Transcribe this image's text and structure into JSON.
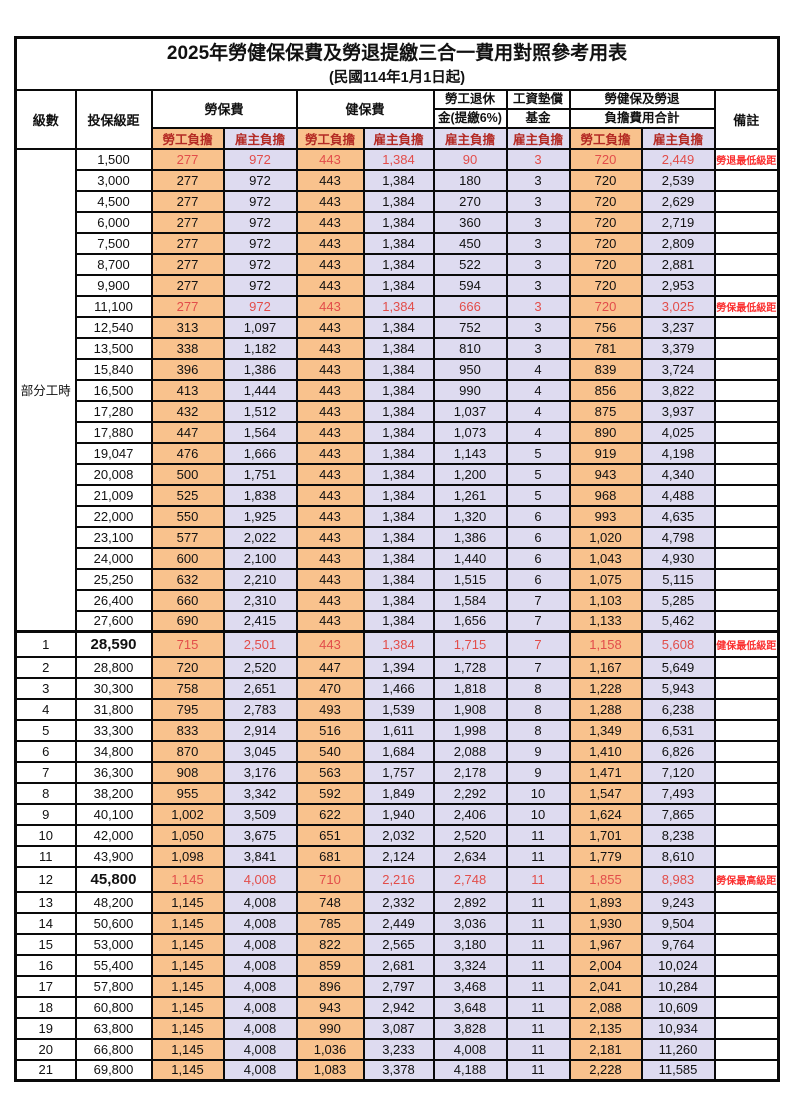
{
  "title": "2025年勞健保保費及勞退提繳三合一費用對照參考用表",
  "subtitle": "(民國114年1月1日起)",
  "colors": {
    "worker_fill": "#f9c28d",
    "employer_fill": "#dedbf0",
    "subheader_text": "#b42a24",
    "highlight_number_text": "#e24d4a",
    "remark_text": "#fb2f2f",
    "border": "#0a0a0a"
  },
  "header": {
    "level": "級數",
    "bracket": "投保級距",
    "labor_insurance": "勞保費",
    "health_insurance": "健保費",
    "pension_line1": "勞工退休",
    "pension_line2": "金(提繳6%)",
    "wage_fund_line1": "工資墊償",
    "wage_fund_line2": "基金",
    "total_line1": "勞健保及勞退",
    "total_line2": "負擔費用合計",
    "remark": "備註",
    "worker_share": "勞工負擔",
    "employer_share": "雇主負擔"
  },
  "part_time_label": "部分工時",
  "part_time_rowspan": 23,
  "rows": [
    {
      "level": null,
      "bracket": "1,500",
      "values": [
        "277",
        "972",
        "443",
        "1,384",
        "90",
        "3",
        "720",
        "2,449"
      ],
      "remark": "勞退最低級距",
      "red": true,
      "tall": false,
      "thick_top": false
    },
    {
      "level": null,
      "bracket": "3,000",
      "values": [
        "277",
        "972",
        "443",
        "1,384",
        "180",
        "3",
        "720",
        "2,539"
      ],
      "remark": "",
      "red": false,
      "tall": false,
      "thick_top": false
    },
    {
      "level": null,
      "bracket": "4,500",
      "values": [
        "277",
        "972",
        "443",
        "1,384",
        "270",
        "3",
        "720",
        "2,629"
      ],
      "remark": "",
      "red": false,
      "tall": false,
      "thick_top": false
    },
    {
      "level": null,
      "bracket": "6,000",
      "values": [
        "277",
        "972",
        "443",
        "1,384",
        "360",
        "3",
        "720",
        "2,719"
      ],
      "remark": "",
      "red": false,
      "tall": false,
      "thick_top": false
    },
    {
      "level": null,
      "bracket": "7,500",
      "values": [
        "277",
        "972",
        "443",
        "1,384",
        "450",
        "3",
        "720",
        "2,809"
      ],
      "remark": "",
      "red": false,
      "tall": false,
      "thick_top": false
    },
    {
      "level": null,
      "bracket": "8,700",
      "values": [
        "277",
        "972",
        "443",
        "1,384",
        "522",
        "3",
        "720",
        "2,881"
      ],
      "remark": "",
      "red": false,
      "tall": false,
      "thick_top": false
    },
    {
      "level": null,
      "bracket": "9,900",
      "values": [
        "277",
        "972",
        "443",
        "1,384",
        "594",
        "3",
        "720",
        "2,953"
      ],
      "remark": "",
      "red": false,
      "tall": false,
      "thick_top": false
    },
    {
      "level": null,
      "bracket": "11,100",
      "values": [
        "277",
        "972",
        "443",
        "1,384",
        "666",
        "3",
        "720",
        "3,025"
      ],
      "remark": "勞保最低級距",
      "red": true,
      "tall": false,
      "thick_top": false
    },
    {
      "level": null,
      "bracket": "12,540",
      "values": [
        "313",
        "1,097",
        "443",
        "1,384",
        "752",
        "3",
        "756",
        "3,237"
      ],
      "remark": "",
      "red": false,
      "tall": false,
      "thick_top": false
    },
    {
      "level": null,
      "bracket": "13,500",
      "values": [
        "338",
        "1,182",
        "443",
        "1,384",
        "810",
        "3",
        "781",
        "3,379"
      ],
      "remark": "",
      "red": false,
      "tall": false,
      "thick_top": false
    },
    {
      "level": null,
      "bracket": "15,840",
      "values": [
        "396",
        "1,386",
        "443",
        "1,384",
        "950",
        "4",
        "839",
        "3,724"
      ],
      "remark": "",
      "red": false,
      "tall": false,
      "thick_top": false
    },
    {
      "level": null,
      "bracket": "16,500",
      "values": [
        "413",
        "1,444",
        "443",
        "1,384",
        "990",
        "4",
        "856",
        "3,822"
      ],
      "remark": "",
      "red": false,
      "tall": false,
      "thick_top": false
    },
    {
      "level": null,
      "bracket": "17,280",
      "values": [
        "432",
        "1,512",
        "443",
        "1,384",
        "1,037",
        "4",
        "875",
        "3,937"
      ],
      "remark": "",
      "red": false,
      "tall": false,
      "thick_top": false
    },
    {
      "level": null,
      "bracket": "17,880",
      "values": [
        "447",
        "1,564",
        "443",
        "1,384",
        "1,073",
        "4",
        "890",
        "4,025"
      ],
      "remark": "",
      "red": false,
      "tall": false,
      "thick_top": false
    },
    {
      "level": null,
      "bracket": "19,047",
      "values": [
        "476",
        "1,666",
        "443",
        "1,384",
        "1,143",
        "5",
        "919",
        "4,198"
      ],
      "remark": "",
      "red": false,
      "tall": false,
      "thick_top": false
    },
    {
      "level": null,
      "bracket": "20,008",
      "values": [
        "500",
        "1,751",
        "443",
        "1,384",
        "1,200",
        "5",
        "943",
        "4,340"
      ],
      "remark": "",
      "red": false,
      "tall": false,
      "thick_top": false
    },
    {
      "level": null,
      "bracket": "21,009",
      "values": [
        "525",
        "1,838",
        "443",
        "1,384",
        "1,261",
        "5",
        "968",
        "4,488"
      ],
      "remark": "",
      "red": false,
      "tall": false,
      "thick_top": false
    },
    {
      "level": null,
      "bracket": "22,000",
      "values": [
        "550",
        "1,925",
        "443",
        "1,384",
        "1,320",
        "6",
        "993",
        "4,635"
      ],
      "remark": "",
      "red": false,
      "tall": false,
      "thick_top": false
    },
    {
      "level": null,
      "bracket": "23,100",
      "values": [
        "577",
        "2,022",
        "443",
        "1,384",
        "1,386",
        "6",
        "1,020",
        "4,798"
      ],
      "remark": "",
      "red": false,
      "tall": false,
      "thick_top": false
    },
    {
      "level": null,
      "bracket": "24,000",
      "values": [
        "600",
        "2,100",
        "443",
        "1,384",
        "1,440",
        "6",
        "1,043",
        "4,930"
      ],
      "remark": "",
      "red": false,
      "tall": false,
      "thick_top": false
    },
    {
      "level": null,
      "bracket": "25,250",
      "values": [
        "632",
        "2,210",
        "443",
        "1,384",
        "1,515",
        "6",
        "1,075",
        "5,115"
      ],
      "remark": "",
      "red": false,
      "tall": false,
      "thick_top": false
    },
    {
      "level": null,
      "bracket": "26,400",
      "values": [
        "660",
        "2,310",
        "443",
        "1,384",
        "1,584",
        "7",
        "1,103",
        "5,285"
      ],
      "remark": "",
      "red": false,
      "tall": false,
      "thick_top": false
    },
    {
      "level": null,
      "bracket": "27,600",
      "values": [
        "690",
        "2,415",
        "443",
        "1,384",
        "1,656",
        "7",
        "1,133",
        "5,462"
      ],
      "remark": "",
      "red": false,
      "tall": false,
      "thick_top": false
    },
    {
      "level": "1",
      "bracket": "28,590",
      "values": [
        "715",
        "2,501",
        "443",
        "1,384",
        "1,715",
        "7",
        "1,158",
        "5,608"
      ],
      "remark": "健保最低級距",
      "red": true,
      "tall": true,
      "thick_top": true
    },
    {
      "level": "2",
      "bracket": "28,800",
      "values": [
        "720",
        "2,520",
        "447",
        "1,394",
        "1,728",
        "7",
        "1,167",
        "5,649"
      ],
      "remark": "",
      "red": false,
      "tall": false,
      "thick_top": false
    },
    {
      "level": "3",
      "bracket": "30,300",
      "values": [
        "758",
        "2,651",
        "470",
        "1,466",
        "1,818",
        "8",
        "1,228",
        "5,943"
      ],
      "remark": "",
      "red": false,
      "tall": false,
      "thick_top": false
    },
    {
      "level": "4",
      "bracket": "31,800",
      "values": [
        "795",
        "2,783",
        "493",
        "1,539",
        "1,908",
        "8",
        "1,288",
        "6,238"
      ],
      "remark": "",
      "red": false,
      "tall": false,
      "thick_top": false
    },
    {
      "level": "5",
      "bracket": "33,300",
      "values": [
        "833",
        "2,914",
        "516",
        "1,611",
        "1,998",
        "8",
        "1,349",
        "6,531"
      ],
      "remark": "",
      "red": false,
      "tall": false,
      "thick_top": false
    },
    {
      "level": "6",
      "bracket": "34,800",
      "values": [
        "870",
        "3,045",
        "540",
        "1,684",
        "2,088",
        "9",
        "1,410",
        "6,826"
      ],
      "remark": "",
      "red": false,
      "tall": false,
      "thick_top": false
    },
    {
      "level": "7",
      "bracket": "36,300",
      "values": [
        "908",
        "3,176",
        "563",
        "1,757",
        "2,178",
        "9",
        "1,471",
        "7,120"
      ],
      "remark": "",
      "red": false,
      "tall": false,
      "thick_top": false
    },
    {
      "level": "8",
      "bracket": "38,200",
      "values": [
        "955",
        "3,342",
        "592",
        "1,849",
        "2,292",
        "10",
        "1,547",
        "7,493"
      ],
      "remark": "",
      "red": false,
      "tall": false,
      "thick_top": false
    },
    {
      "level": "9",
      "bracket": "40,100",
      "values": [
        "1,002",
        "3,509",
        "622",
        "1,940",
        "2,406",
        "10",
        "1,624",
        "7,865"
      ],
      "remark": "",
      "red": false,
      "tall": false,
      "thick_top": false
    },
    {
      "level": "10",
      "bracket": "42,000",
      "values": [
        "1,050",
        "3,675",
        "651",
        "2,032",
        "2,520",
        "11",
        "1,701",
        "8,238"
      ],
      "remark": "",
      "red": false,
      "tall": false,
      "thick_top": false
    },
    {
      "level": "11",
      "bracket": "43,900",
      "values": [
        "1,098",
        "3,841",
        "681",
        "2,124",
        "2,634",
        "11",
        "1,779",
        "8,610"
      ],
      "remark": "",
      "red": false,
      "tall": false,
      "thick_top": false
    },
    {
      "level": "12",
      "bracket": "45,800",
      "values": [
        "1,145",
        "4,008",
        "710",
        "2,216",
        "2,748",
        "11",
        "1,855",
        "8,983"
      ],
      "remark": "勞保最高級距",
      "red": true,
      "tall": true,
      "thick_top": false
    },
    {
      "level": "13",
      "bracket": "48,200",
      "values": [
        "1,145",
        "4,008",
        "748",
        "2,332",
        "2,892",
        "11",
        "1,893",
        "9,243"
      ],
      "remark": "",
      "red": false,
      "tall": false,
      "thick_top": false
    },
    {
      "level": "14",
      "bracket": "50,600",
      "values": [
        "1,145",
        "4,008",
        "785",
        "2,449",
        "3,036",
        "11",
        "1,930",
        "9,504"
      ],
      "remark": "",
      "red": false,
      "tall": false,
      "thick_top": false
    },
    {
      "level": "15",
      "bracket": "53,000",
      "values": [
        "1,145",
        "4,008",
        "822",
        "2,565",
        "3,180",
        "11",
        "1,967",
        "9,764"
      ],
      "remark": "",
      "red": false,
      "tall": false,
      "thick_top": false
    },
    {
      "level": "16",
      "bracket": "55,400",
      "values": [
        "1,145",
        "4,008",
        "859",
        "2,681",
        "3,324",
        "11",
        "2,004",
        "10,024"
      ],
      "remark": "",
      "red": false,
      "tall": false,
      "thick_top": false
    },
    {
      "level": "17",
      "bracket": "57,800",
      "values": [
        "1,145",
        "4,008",
        "896",
        "2,797",
        "3,468",
        "11",
        "2,041",
        "10,284"
      ],
      "remark": "",
      "red": false,
      "tall": false,
      "thick_top": false
    },
    {
      "level": "18",
      "bracket": "60,800",
      "values": [
        "1,145",
        "4,008",
        "943",
        "2,942",
        "3,648",
        "11",
        "2,088",
        "10,609"
      ],
      "remark": "",
      "red": false,
      "tall": false,
      "thick_top": false
    },
    {
      "level": "19",
      "bracket": "63,800",
      "values": [
        "1,145",
        "4,008",
        "990",
        "3,087",
        "3,828",
        "11",
        "2,135",
        "10,934"
      ],
      "remark": "",
      "red": false,
      "tall": false,
      "thick_top": false
    },
    {
      "level": "20",
      "bracket": "66,800",
      "values": [
        "1,145",
        "4,008",
        "1,036",
        "3,233",
        "4,008",
        "11",
        "2,181",
        "11,260"
      ],
      "remark": "",
      "red": false,
      "tall": false,
      "thick_top": false
    },
    {
      "level": "21",
      "bracket": "69,800",
      "values": [
        "1,145",
        "4,008",
        "1,083",
        "3,378",
        "4,188",
        "11",
        "2,228",
        "11,585"
      ],
      "remark": "",
      "red": false,
      "tall": false,
      "thick_top": false
    }
  ]
}
